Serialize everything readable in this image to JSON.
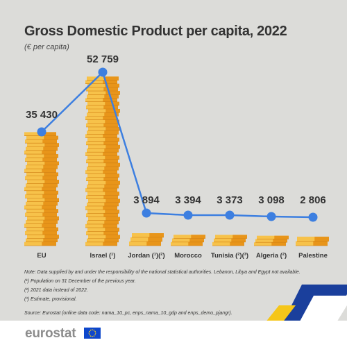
{
  "title": "Gross Domestic Product per capita, 2022",
  "subtitle": "(€ per capita)",
  "notes": [
    "Note: Data supplied by and under the responsibility of the national statistical authorities. Lebanon, Libya and Egypt not available.",
    "(¹) Population on 31 December of the previous year.",
    "(²) 2021 data instead of 2022.",
    "(³) Estimate, provisional."
  ],
  "source": "Source: Eurostat (online data code: nama_10_pc, enps_nama_10_gdp and enps_demo_pjangr).",
  "logo": {
    "text": "eurostat"
  },
  "colors": {
    "line": "#3d7fe0",
    "coin_light": "#f7c24a",
    "coin_dark": "#e8951a",
    "coin_edge": "#d07f12",
    "background": "#dcdcd9"
  },
  "chart_data": {
    "type": "bar",
    "categories": [
      "EU",
      "Israel (¹)",
      "Jordan (¹)(²)",
      "Morocco",
      "Tunisia (²)(³)",
      "Algeria (²)",
      "Palestine"
    ],
    "values": [
      35430,
      52759,
      3894,
      3394,
      3373,
      3098,
      2806
    ],
    "value_labels": [
      "35 430",
      "52 759",
      "3 894",
      "3 394",
      "3 373",
      "3 098",
      "2 806"
    ],
    "title": "Gross Domestic Product per capita, 2022",
    "ylabel": "€ per capita",
    "ylim": [
      0,
      55000
    ],
    "grid": false,
    "legend": "none"
  }
}
